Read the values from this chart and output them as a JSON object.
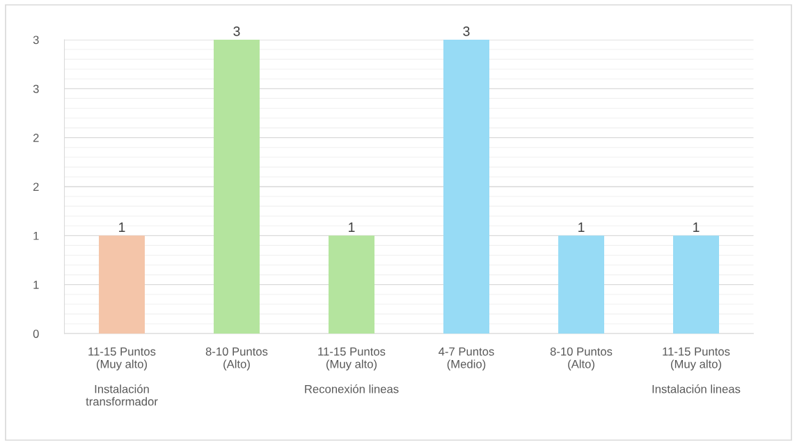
{
  "chart_data": {
    "type": "bar",
    "categories": [
      "11-15 Puntos\n(Muy alto)\n\nInstalación\ntransformador",
      "8-10 Puntos\n(Alto)",
      "11-15 Puntos\n(Muy alto)\n\nReconexión lineas",
      "4-7 Puntos\n(Medio)",
      "8-10 Puntos\n(Alto)",
      "11-15 Puntos\n(Muy alto)\n\nInstalación lineas"
    ],
    "values": [
      1,
      3,
      1,
      3,
      1,
      1
    ],
    "colors": [
      "#f4c5a9",
      "#b4e49e",
      "#b4e49e",
      "#97dbf5",
      "#97dbf5",
      "#97dbf5"
    ],
    "ylim": [
      0,
      3
    ],
    "yticks": [
      0,
      {
        "value": 0.5,
        "label": "1"
      },
      1,
      {
        "value": 1.5,
        "label": "2"
      },
      2,
      {
        "value": 2.5,
        "label": "3"
      },
      3
    ],
    "grid": "y",
    "data_labels": true
  }
}
